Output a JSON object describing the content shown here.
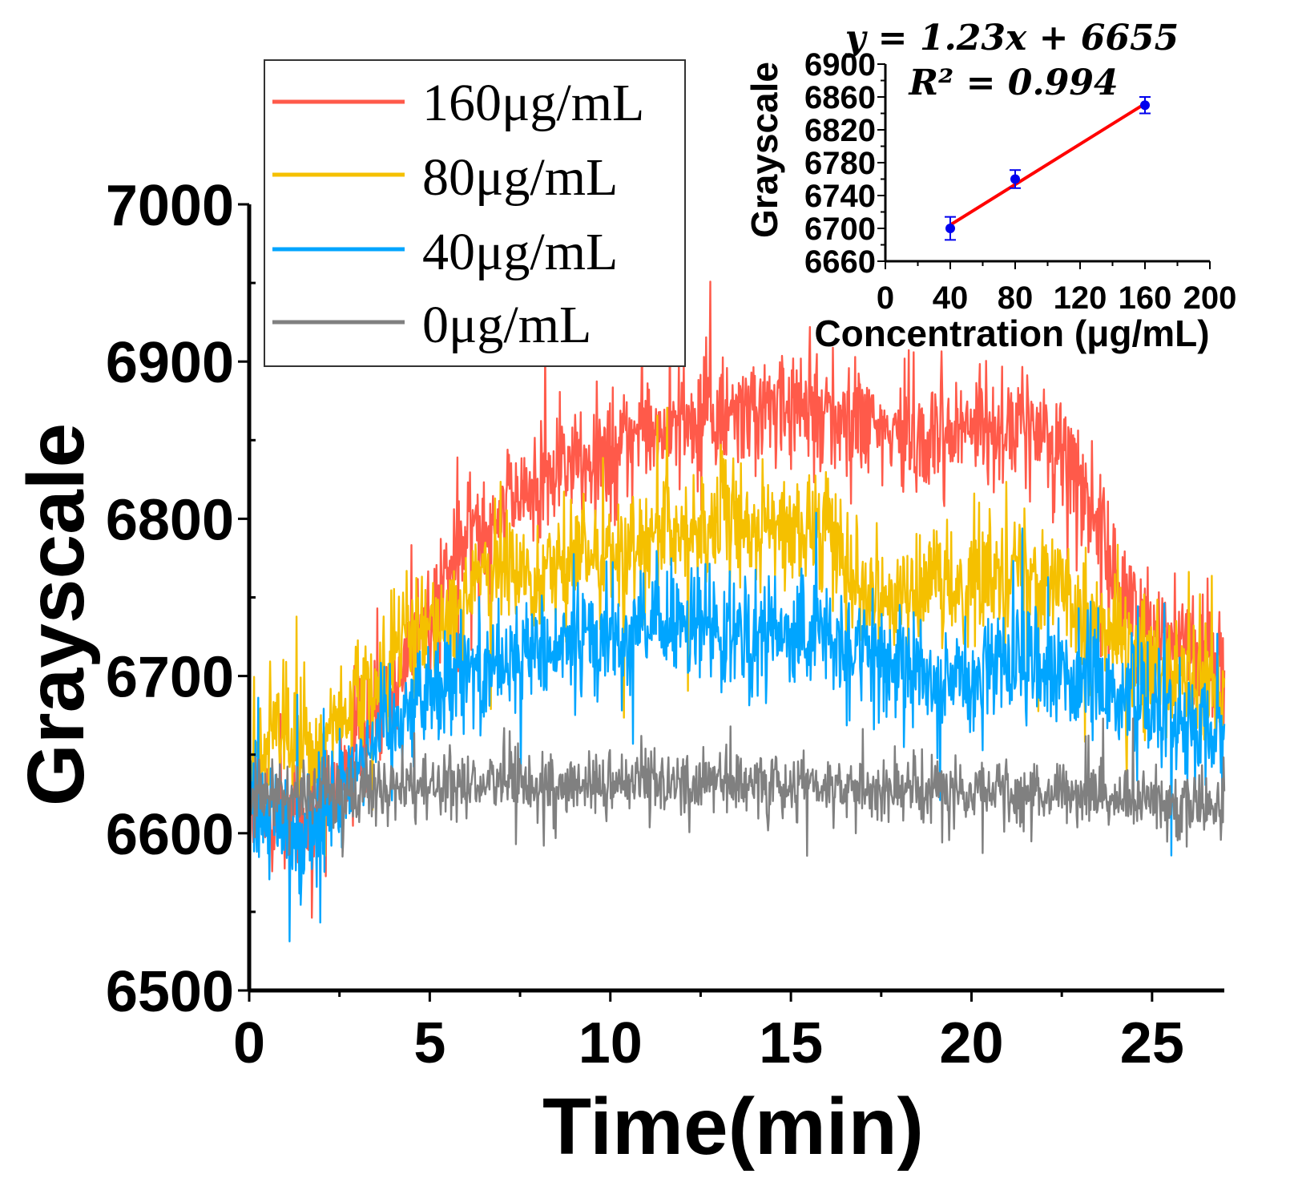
{
  "chart_data": [
    {
      "type": "line",
      "xlabel": "Time(min)",
      "ylabel": "Grayscale",
      "xlim": [
        0,
        27
      ],
      "ylim": [
        6500,
        7000
      ],
      "x_ticks": [
        "0",
        "5",
        "10",
        "15",
        "20",
        "25"
      ],
      "y_ticks": [
        "6500",
        "6600",
        "6700",
        "6800",
        "6900",
        "7000"
      ],
      "legend_position": "top-left",
      "series": [
        {
          "name": "160μg/mL",
          "color": "#ff5a4a",
          "noise": 18,
          "trend": [
            [
              0,
              6625
            ],
            [
              1,
              6610
            ],
            [
              1.5,
              6600
            ],
            [
              2.5,
              6630
            ],
            [
              3,
              6660
            ],
            [
              4,
              6700
            ],
            [
              5,
              6740
            ],
            [
              6,
              6790
            ],
            [
              7,
              6810
            ],
            [
              8,
              6820
            ],
            [
              9,
              6835
            ],
            [
              10,
              6845
            ],
            [
              11,
              6855
            ],
            [
              12,
              6860
            ],
            [
              13,
              6865
            ],
            [
              14,
              6868
            ],
            [
              15,
              6870
            ],
            [
              16,
              6872
            ],
            [
              17,
              6860
            ],
            [
              18,
              6850
            ],
            [
              19,
              6855
            ],
            [
              20,
              6858
            ],
            [
              21,
              6860
            ],
            [
              22,
              6855
            ],
            [
              23,
              6830
            ],
            [
              24,
              6760
            ],
            [
              25,
              6730
            ],
            [
              26,
              6720
            ],
            [
              27,
              6710
            ]
          ]
        },
        {
          "name": "80μg/mL",
          "color": "#f5c000",
          "noise": 18,
          "trend": [
            [
              0,
              6650
            ],
            [
              1,
              6660
            ],
            [
              1.5,
              6650
            ],
            [
              2.5,
              6670
            ],
            [
              3,
              6680
            ],
            [
              4,
              6710
            ],
            [
              5,
              6730
            ],
            [
              6,
              6755
            ],
            [
              7,
              6765
            ],
            [
              8,
              6770
            ],
            [
              9,
              6775
            ],
            [
              10,
              6780
            ],
            [
              11,
              6785
            ],
            [
              12,
              6790
            ],
            [
              13,
              6795
            ],
            [
              14,
              6795
            ],
            [
              15,
              6790
            ],
            [
              16,
              6795
            ],
            [
              17,
              6760
            ],
            [
              18,
              6750
            ],
            [
              19,
              6755
            ],
            [
              20,
              6760
            ],
            [
              21,
              6770
            ],
            [
              22,
              6770
            ],
            [
              23,
              6740
            ],
            [
              24,
              6720
            ],
            [
              25,
              6700
            ],
            [
              26,
              6695
            ],
            [
              27,
              6690
            ]
          ]
        },
        {
          "name": "40μg/mL",
          "color": "#00a5ff",
          "noise": 18,
          "trend": [
            [
              0,
              6615
            ],
            [
              1,
              6605
            ],
            [
              1.5,
              6595
            ],
            [
              2.5,
              6625
            ],
            [
              3,
              6650
            ],
            [
              4,
              6675
            ],
            [
              5,
              6690
            ],
            [
              6,
              6705
            ],
            [
              7,
              6710
            ],
            [
              8,
              6715
            ],
            [
              9,
              6720
            ],
            [
              10,
              6725
            ],
            [
              11,
              6730
            ],
            [
              12,
              6730
            ],
            [
              13,
              6730
            ],
            [
              14,
              6728
            ],
            [
              15,
              6725
            ],
            [
              16,
              6725
            ],
            [
              17,
              6715
            ],
            [
              18,
              6705
            ],
            [
              19,
              6700
            ],
            [
              20,
              6700
            ],
            [
              21,
              6705
            ],
            [
              22,
              6705
            ],
            [
              23,
              6700
            ],
            [
              24,
              6690
            ],
            [
              25,
              6680
            ],
            [
              26,
              6670
            ],
            [
              27,
              6660
            ]
          ]
        },
        {
          "name": "0μg/mL",
          "color": "#808080",
          "noise": 10,
          "trend": [
            [
              0,
              6625
            ],
            [
              2,
              6625
            ],
            [
              3,
              6628
            ],
            [
              5,
              6630
            ],
            [
              10,
              6632
            ],
            [
              15,
              6632
            ],
            [
              20,
              6628
            ],
            [
              25,
              6622
            ],
            [
              27,
              6615
            ]
          ]
        }
      ]
    },
    {
      "type": "scatter",
      "xlabel": "Concentration (μg/mL)",
      "ylabel": "Grayscale",
      "xlim": [
        0,
        200
      ],
      "ylim": [
        6660,
        6900
      ],
      "x_ticks": [
        "0",
        "40",
        "80",
        "120",
        "160",
        "200"
      ],
      "y_ticks": [
        "6660",
        "6700",
        "6740",
        "6780",
        "6820",
        "6860",
        "6900"
      ],
      "points": [
        {
          "x": 40,
          "y": 6700,
          "err": 14
        },
        {
          "x": 80,
          "y": 6760,
          "err": 11
        },
        {
          "x": 160,
          "y": 6850,
          "err": 10
        }
      ],
      "point_color": "#0000ee",
      "fit": {
        "slope": 1.23,
        "intercept": 6655,
        "color": "#ff0000"
      },
      "equation": "y = 1.23x + 6655",
      "r_squared": "R² = 0.994"
    }
  ]
}
